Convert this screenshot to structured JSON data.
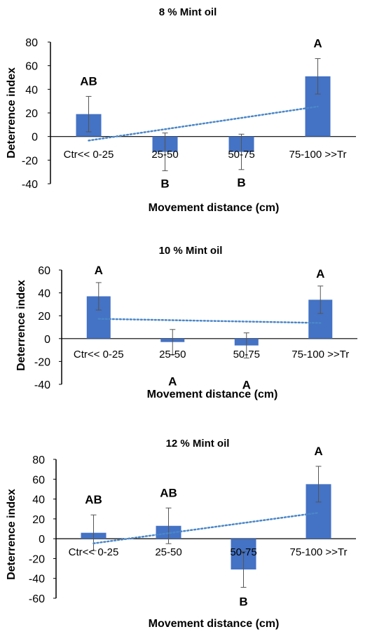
{
  "chart_data": [
    {
      "type": "bar",
      "title": "8 % Mint oil",
      "xlabel": "Movement distance (cm)",
      "ylabel": "Deterrence  index",
      "categories": [
        "Ctr<< 0-25",
        "25-50",
        "50-75",
        "75-100 >>Tr"
      ],
      "values": [
        19,
        -13,
        -13,
        51
      ],
      "error": [
        15,
        16,
        15,
        15
      ],
      "significance": [
        "AB",
        "B",
        "B",
        "A"
      ],
      "trendline": {
        "type": "linear",
        "style": "dotted"
      },
      "ylim": [
        -40,
        80
      ],
      "yticks": [
        -40,
        -20,
        0,
        20,
        40,
        60,
        80
      ],
      "grid": false,
      "legend": "none",
      "bar_color": "#4472C4",
      "trend_color": "#4A86C8"
    },
    {
      "type": "bar",
      "title": "10 % Mint oil",
      "xlabel": "Movement distance (cm)",
      "ylabel": "Deterrence  index",
      "categories": [
        "Ctr<< 0-25",
        "25-50",
        "50-75",
        "75-100 >>Tr"
      ],
      "values": [
        37,
        -3,
        -6,
        34
      ],
      "error": [
        12,
        11,
        11,
        12
      ],
      "significance": [
        "A",
        "A",
        "A",
        "A"
      ],
      "trendline": {
        "type": "linear",
        "style": "dotted"
      },
      "ylim": [
        -40,
        60
      ],
      "yticks": [
        -40,
        -20,
        0,
        20,
        40,
        60
      ],
      "grid": false,
      "legend": "none",
      "bar_color": "#4472C4",
      "trend_color": "#4A86C8"
    },
    {
      "type": "bar",
      "title": "12 % Mint oil",
      "xlabel": "Movement distance (cm)",
      "ylabel": "Deterrence  index",
      "categories": [
        "Ctr<< 0-25",
        "25-50",
        "50-75",
        "75-100 >>Tr"
      ],
      "values": [
        6,
        13,
        -31,
        55
      ],
      "error": [
        18,
        18,
        18,
        18
      ],
      "significance": [
        "AB",
        "AB",
        "B",
        "A"
      ],
      "trendline": {
        "type": "linear",
        "style": "dotted"
      },
      "ylim": [
        -60,
        80
      ],
      "yticks": [
        -60,
        -40,
        -20,
        0,
        20,
        40,
        60,
        80
      ],
      "grid": false,
      "legend": "none",
      "bar_color": "#4472C4",
      "trend_color": "#4A86C8"
    }
  ]
}
